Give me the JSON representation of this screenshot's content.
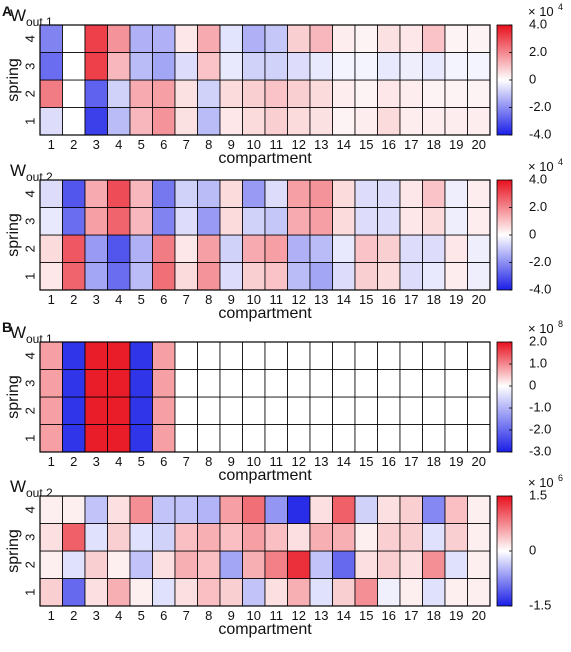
{
  "panel_labels": {
    "A": "A",
    "B": "B"
  },
  "chart_data": [
    {
      "type": "heatmap",
      "panel": "A",
      "title_main": "W",
      "title_sub": "out,1",
      "xlabel": "compartment",
      "ylabel": "spring",
      "x_categories": [
        "1",
        "2",
        "3",
        "4",
        "5",
        "6",
        "7",
        "8",
        "9",
        "10",
        "11",
        "12",
        "13",
        "14",
        "15",
        "16",
        "17",
        "18",
        "19",
        "20"
      ],
      "y_categories": [
        "1",
        "2",
        "3",
        "4"
      ],
      "colorbar": {
        "min": -4,
        "max": 4,
        "ticks": [
          "4.0",
          "2.0",
          "0",
          "-2.0",
          "-4.0"
        ],
        "tick_values": [
          4,
          2,
          0,
          -2,
          -4
        ],
        "exponent_base": "× 10",
        "exponent_power": "4"
      },
      "values": [
        [
          -0.6,
          0,
          -3.4,
          -1.2,
          1.2,
          1.8,
          0.5,
          -1.2,
          0.4,
          0.6,
          0.8,
          0.6,
          0.5,
          0.2,
          0.3,
          0.6,
          0.3,
          0.3,
          0.3,
          0.3
        ],
        [
          2.2,
          0,
          -2.8,
          -0.8,
          1.4,
          1.6,
          0.5,
          -0.8,
          0.6,
          0.8,
          1.0,
          0.8,
          0.6,
          0.3,
          0.2,
          0.4,
          0.3,
          0.2,
          0.2,
          0.2
        ],
        [
          -2.6,
          0,
          3.2,
          1.2,
          -1.2,
          -1.6,
          -0.6,
          1.0,
          -0.4,
          -0.8,
          -0.8,
          -0.6,
          -0.4,
          -0.2,
          -0.2,
          -0.4,
          -0.3,
          -0.4,
          -0.2,
          -0.2
        ],
        [
          -2.2,
          0,
          3.2,
          1.8,
          -1.4,
          -1.4,
          0.4,
          1.4,
          -0.5,
          -1.4,
          -1.0,
          0.8,
          1.2,
          0.3,
          0.2,
          0.5,
          0.4,
          1.0,
          0.2,
          0.2
        ]
      ]
    },
    {
      "type": "heatmap",
      "panel": "A",
      "title_main": "W",
      "title_sub": "out,2",
      "xlabel": "compartment",
      "ylabel": "spring",
      "x_categories": [
        "1",
        "2",
        "3",
        "4",
        "5",
        "6",
        "7",
        "8",
        "9",
        "10",
        "11",
        "12",
        "13",
        "14",
        "15",
        "16",
        "17",
        "18",
        "19",
        "20"
      ],
      "y_categories": [
        "1",
        "2",
        "3",
        "4"
      ],
      "colorbar": {
        "min": -4,
        "max": 4,
        "ticks": [
          "4.0",
          "2.0",
          "0",
          "-2.0",
          "-4.0"
        ],
        "tick_values": [
          4,
          2,
          0,
          -2,
          -4
        ],
        "exponent_base": "× 10",
        "exponent_power": "4"
      },
      "values": [
        [
          0.4,
          2.6,
          -1.6,
          -2.6,
          -1.2,
          2.4,
          0.6,
          1.8,
          -0.6,
          0.8,
          1.0,
          -1.2,
          -1.6,
          -0.6,
          0.8,
          0.6,
          -0.6,
          -0.4,
          0.3,
          -0.3
        ],
        [
          0.6,
          2.8,
          -1.8,
          -3.0,
          -1.4,
          2.2,
          0.4,
          1.6,
          -0.8,
          1.4,
          1.6,
          -1.4,
          -1.2,
          -0.4,
          1.0,
          0.8,
          -0.6,
          -0.6,
          0.4,
          -0.3
        ],
        [
          -0.4,
          -2.6,
          1.6,
          2.6,
          1.2,
          -2.2,
          -0.6,
          -1.8,
          0.6,
          -0.8,
          -1.0,
          1.4,
          1.6,
          0.6,
          -0.6,
          -0.6,
          0.4,
          0.6,
          -0.3,
          0.3
        ],
        [
          -0.6,
          -3.0,
          1.4,
          3.0,
          1.2,
          -2.4,
          -0.8,
          -1.2,
          0.6,
          -1.8,
          -0.6,
          1.6,
          1.8,
          0.6,
          -0.6,
          -0.6,
          0.4,
          1.0,
          -0.3,
          0.3
        ]
      ]
    },
    {
      "type": "heatmap",
      "panel": "B",
      "title_main": "W",
      "title_sub": "out,1",
      "xlabel": "compartment",
      "ylabel": "spring",
      "x_categories": [
        "1",
        "2",
        "3",
        "4",
        "5",
        "6",
        "7",
        "8",
        "9",
        "10",
        "11",
        "12",
        "13",
        "14",
        "15",
        "16",
        "17",
        "18",
        "19",
        "20"
      ],
      "y_categories": [
        "1",
        "2",
        "3",
        "4"
      ],
      "colorbar": {
        "min": -3,
        "max": 2,
        "ticks": [
          "2.0",
          "1.0",
          "0",
          "-1.0",
          "-2.0",
          "-3.0"
        ],
        "tick_values": [
          2,
          1,
          0,
          -1,
          -2,
          -3
        ],
        "exponent_base": "× 10",
        "exponent_power": "8"
      },
      "values": [
        [
          0.8,
          -2.7,
          1.9,
          1.9,
          -2.7,
          0.8,
          0,
          0,
          0,
          0,
          0,
          0,
          0,
          0,
          0,
          0,
          0,
          0,
          0,
          0
        ],
        [
          0.8,
          -2.7,
          1.9,
          1.9,
          -2.7,
          0.8,
          0,
          0,
          0,
          0,
          0,
          0,
          0,
          0,
          0,
          0,
          0,
          0,
          0,
          0
        ],
        [
          0.8,
          -2.7,
          1.9,
          1.9,
          -2.7,
          0.8,
          0,
          0,
          0,
          0,
          0,
          0,
          0,
          0,
          0,
          0,
          0,
          0,
          0,
          0
        ],
        [
          0.8,
          -2.7,
          1.9,
          1.9,
          -2.7,
          0.8,
          0,
          0,
          0,
          0,
          0,
          0,
          0,
          0,
          0,
          0,
          0,
          0,
          0,
          0
        ]
      ]
    },
    {
      "type": "heatmap",
      "panel": "B",
      "title_main": "W",
      "title_sub": "out,2",
      "xlabel": "compartment",
      "ylabel": "spring",
      "x_categories": [
        "1",
        "2",
        "3",
        "4",
        "5",
        "6",
        "7",
        "8",
        "9",
        "10",
        "11",
        "12",
        "13",
        "14",
        "15",
        "16",
        "17",
        "18",
        "19",
        "20"
      ],
      "y_categories": [
        "1",
        "2",
        "3",
        "4"
      ],
      "colorbar": {
        "min": -1.5,
        "max": 1.5,
        "ticks": [
          "1.5",
          "0",
          "-1.5"
        ],
        "tick_values": [
          1.5,
          0,
          -1.5
        ],
        "exponent_base": "× 10",
        "exponent_power": "6"
      },
      "values": [
        [
          0.3,
          -1.0,
          0.2,
          0.5,
          0.1,
          -0.2,
          0.2,
          0.4,
          0.3,
          -0.4,
          0.2,
          0.5,
          -0.2,
          0.3,
          0.7,
          -0.1,
          0.1,
          -0.2,
          0.1,
          0.1
        ],
        [
          0.1,
          -0.2,
          0.3,
          0.1,
          -0.4,
          0.2,
          0.5,
          0.4,
          -0.6,
          0.5,
          0.8,
          1.3,
          -0.4,
          -1.0,
          0.2,
          0.3,
          0.2,
          0.7,
          -0.2,
          0.1
        ],
        [
          0.2,
          1.0,
          -0.2,
          0.3,
          -0.2,
          -0.3,
          0.4,
          0.5,
          0.4,
          0.6,
          0.4,
          0.2,
          0.5,
          0.5,
          0.1,
          0.3,
          0.3,
          -0.2,
          0.3,
          0.1
        ],
        [
          0.1,
          0.1,
          -0.4,
          0.2,
          0.7,
          -0.4,
          -0.4,
          -0.5,
          0.6,
          0.9,
          -0.7,
          -1.4,
          0.2,
          1.0,
          -0.3,
          0.2,
          0.3,
          -0.8,
          0.4,
          0.1
        ]
      ]
    }
  ]
}
